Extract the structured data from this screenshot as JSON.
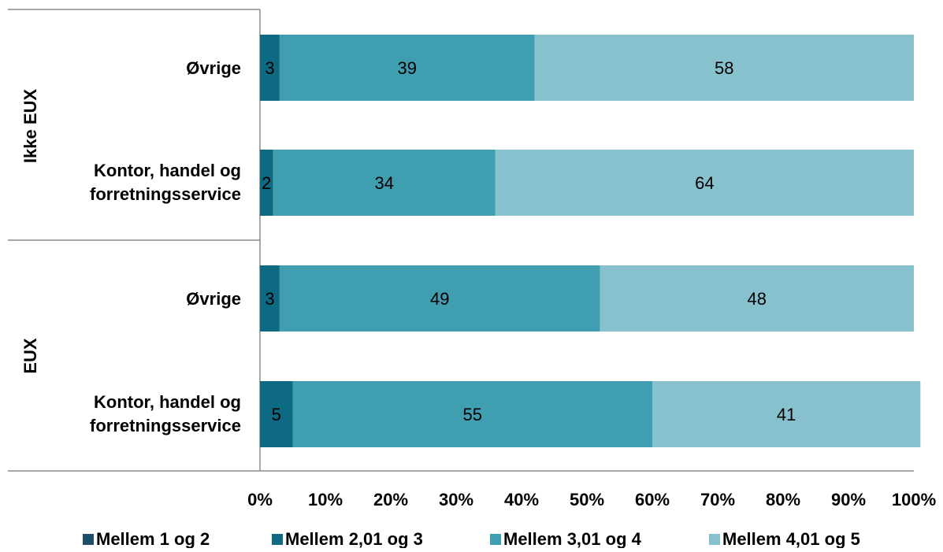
{
  "chart_data": {
    "type": "bar",
    "orientation": "horizontal",
    "stacked": "percent",
    "groups": [
      {
        "label": "Ikke EUX",
        "categories": [
          "Øvrige",
          "Kontor, handel og forretningsservice"
        ]
      },
      {
        "label": "EUX",
        "categories": [
          "Øvrige",
          "Kontor, handel og forretningsservice"
        ]
      }
    ],
    "categories": [
      "Øvrige",
      "Kontor, handel og forretningsservice",
      "Øvrige",
      "Kontor, handel og forretningsservice"
    ],
    "series": [
      {
        "name": "Mellem 1 og 2",
        "color": "#1f4e68",
        "values": [
          0,
          0,
          0,
          0
        ],
        "labels": [
          "",
          "",
          "",
          ""
        ]
      },
      {
        "name": "Mellem 2,01 og 3",
        "color": "#0e6a83",
        "values": [
          3,
          2,
          3,
          5
        ],
        "labels": [
          "3",
          "2",
          "3",
          "5"
        ]
      },
      {
        "name": "Mellem 3,01 og 4",
        "color": "#409eb1",
        "values": [
          39,
          34,
          49,
          55
        ],
        "labels": [
          "39",
          "34",
          "49",
          "55"
        ]
      },
      {
        "name": "Mellem 4,01 og 5",
        "color": "#88c1ce",
        "values": [
          58,
          64,
          48,
          41
        ],
        "labels": [
          "58",
          "64",
          "48",
          "41"
        ]
      }
    ],
    "xlim": [
      0,
      100
    ],
    "xticks": [
      "0%",
      "10%",
      "20%",
      "30%",
      "40%",
      "50%",
      "60%",
      "70%",
      "80%",
      "90%",
      "100%"
    ],
    "xlabel": "",
    "ylabel": "",
    "title": "",
    "grid": false,
    "legend": "bottom"
  }
}
